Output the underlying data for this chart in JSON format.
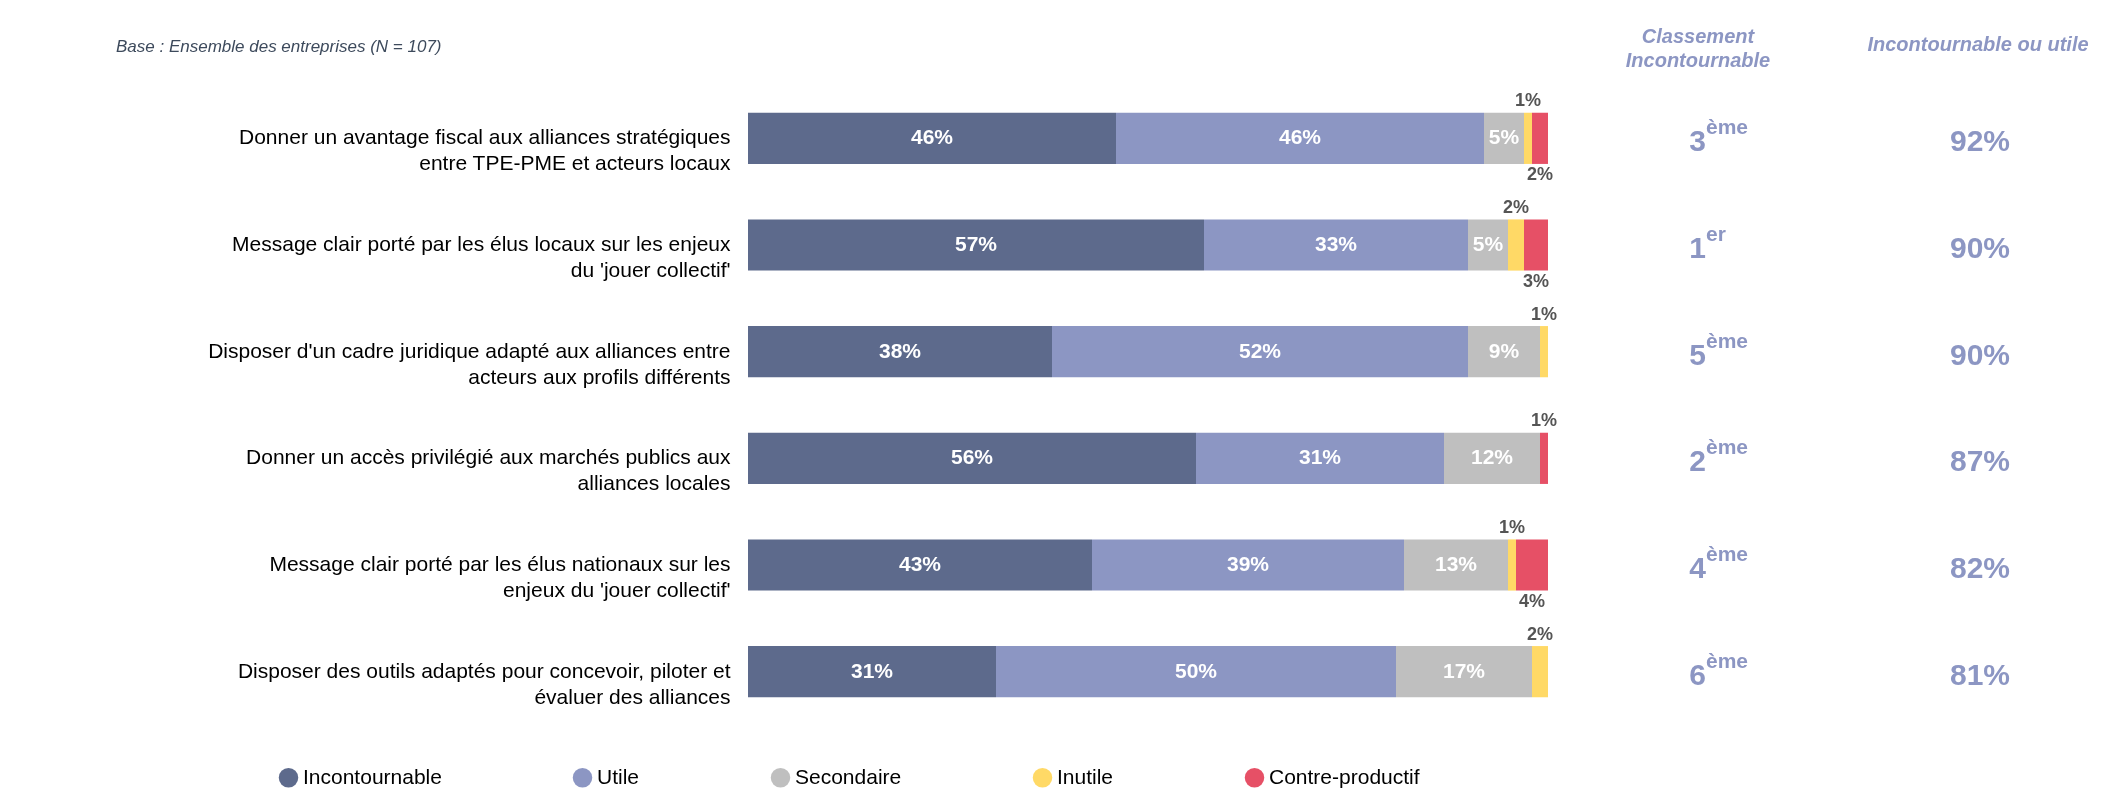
{
  "chart_data": {
    "type": "bar",
    "orientation": "horizontal",
    "stacked": true,
    "legend": "bottom",
    "tick_labels": "y",
    "xlim": [
      0,
      100
    ],
    "categories": [
      "Donner un avantage fiscal aux alliances stratégiques\nentre TPE-PME et acteurs locaux",
      "Message clair porté par les élus locaux sur les enjeux\ndu 'jouer collectif'",
      "Disposer d'un cadre juridique adapté aux alliances entre\nacteurs aux profils différents",
      "Donner un accès privilégié aux marchés publics aux\nalliances locales",
      "Message clair porté par les élus nationaux sur les\nenjeux du 'jouer collectif'",
      "Disposer des outils adaptés pour concevoir, piloter et\névaluer des alliances"
    ],
    "series": [
      {
        "name": "Incontournable",
        "color": "#5d6a8c",
        "values": [
          46,
          57,
          38,
          56,
          43,
          31
        ],
        "value_labels": [
          "46%",
          "57%",
          "38%",
          "56%",
          "43%",
          "31%"
        ]
      },
      {
        "name": "Utile",
        "color": "#8c96c3",
        "values": [
          46,
          33,
          52,
          31,
          39,
          50
        ],
        "value_labels": [
          "46%",
          "33%",
          "52%",
          "31%",
          "39%",
          "50%"
        ]
      },
      {
        "name": "Secondaire",
        "color": "#bfbfbf",
        "values": [
          5,
          5,
          9,
          12,
          13,
          17
        ],
        "value_labels": [
          "5%",
          "5%",
          "9%",
          "12%",
          "13%",
          "17%"
        ]
      },
      {
        "name": "Inutile",
        "color": "#ffd966",
        "values": [
          1,
          2,
          1,
          0,
          1,
          2
        ],
        "value_labels": [
          "1%",
          "2%",
          "1%",
          null,
          "1%",
          "2%"
        ]
      },
      {
        "name": "Contre-productif",
        "color": "#e65066",
        "values": [
          2,
          3,
          0,
          1,
          4,
          0
        ],
        "value_labels": [
          "2%",
          "3%",
          null,
          "1%",
          "4%",
          null
        ]
      }
    ],
    "annotations": [
      "Base : Ensemble des entreprises  (N = 107)",
      "Classement\nIncontournable",
      "Incontournable ou utile",
      "3$^{ème}$",
      "1$^{er}$",
      "5$^{ème}$",
      "2$^{ème}$",
      "4$^{ème}$",
      "6$^{ème}$",
      "92%",
      "90%",
      "90%",
      "87%",
      "82%",
      "81%"
    ]
  }
}
